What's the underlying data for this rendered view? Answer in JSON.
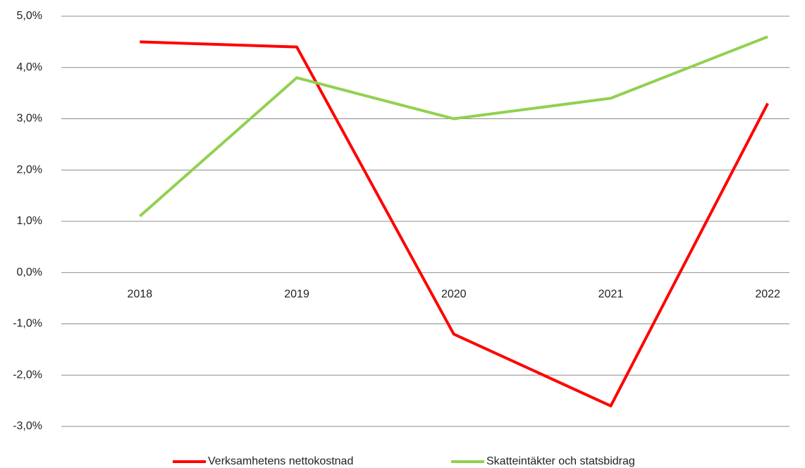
{
  "chart_data": {
    "type": "line",
    "categories": [
      "2018",
      "2019",
      "2020",
      "2021",
      "2022"
    ],
    "series": [
      {
        "name": "Verksamhetens nettokostnad",
        "color": "#ff0000",
        "values": [
          4.5,
          4.4,
          -1.2,
          -2.6,
          3.3
        ]
      },
      {
        "name": "Skatteintäkter och statsbidrag",
        "color": "#92d050",
        "values": [
          1.1,
          3.8,
          3.0,
          3.4,
          4.6
        ]
      }
    ],
    "ylim": [
      -3,
      5
    ],
    "yticks": [
      {
        "value": -3,
        "label": "-3,0%"
      },
      {
        "value": -2,
        "label": "-2,0%"
      },
      {
        "value": -1,
        "label": "-1,0%"
      },
      {
        "value": 0,
        "label": "0,0%"
      },
      {
        "value": 1,
        "label": "1,0%"
      },
      {
        "value": 2,
        "label": "2,0%"
      },
      {
        "value": 3,
        "label": "3,0%"
      },
      {
        "value": 4,
        "label": "4,0%"
      },
      {
        "value": 5,
        "label": "5,0%"
      }
    ],
    "grid": true,
    "legend": "bottom"
  }
}
